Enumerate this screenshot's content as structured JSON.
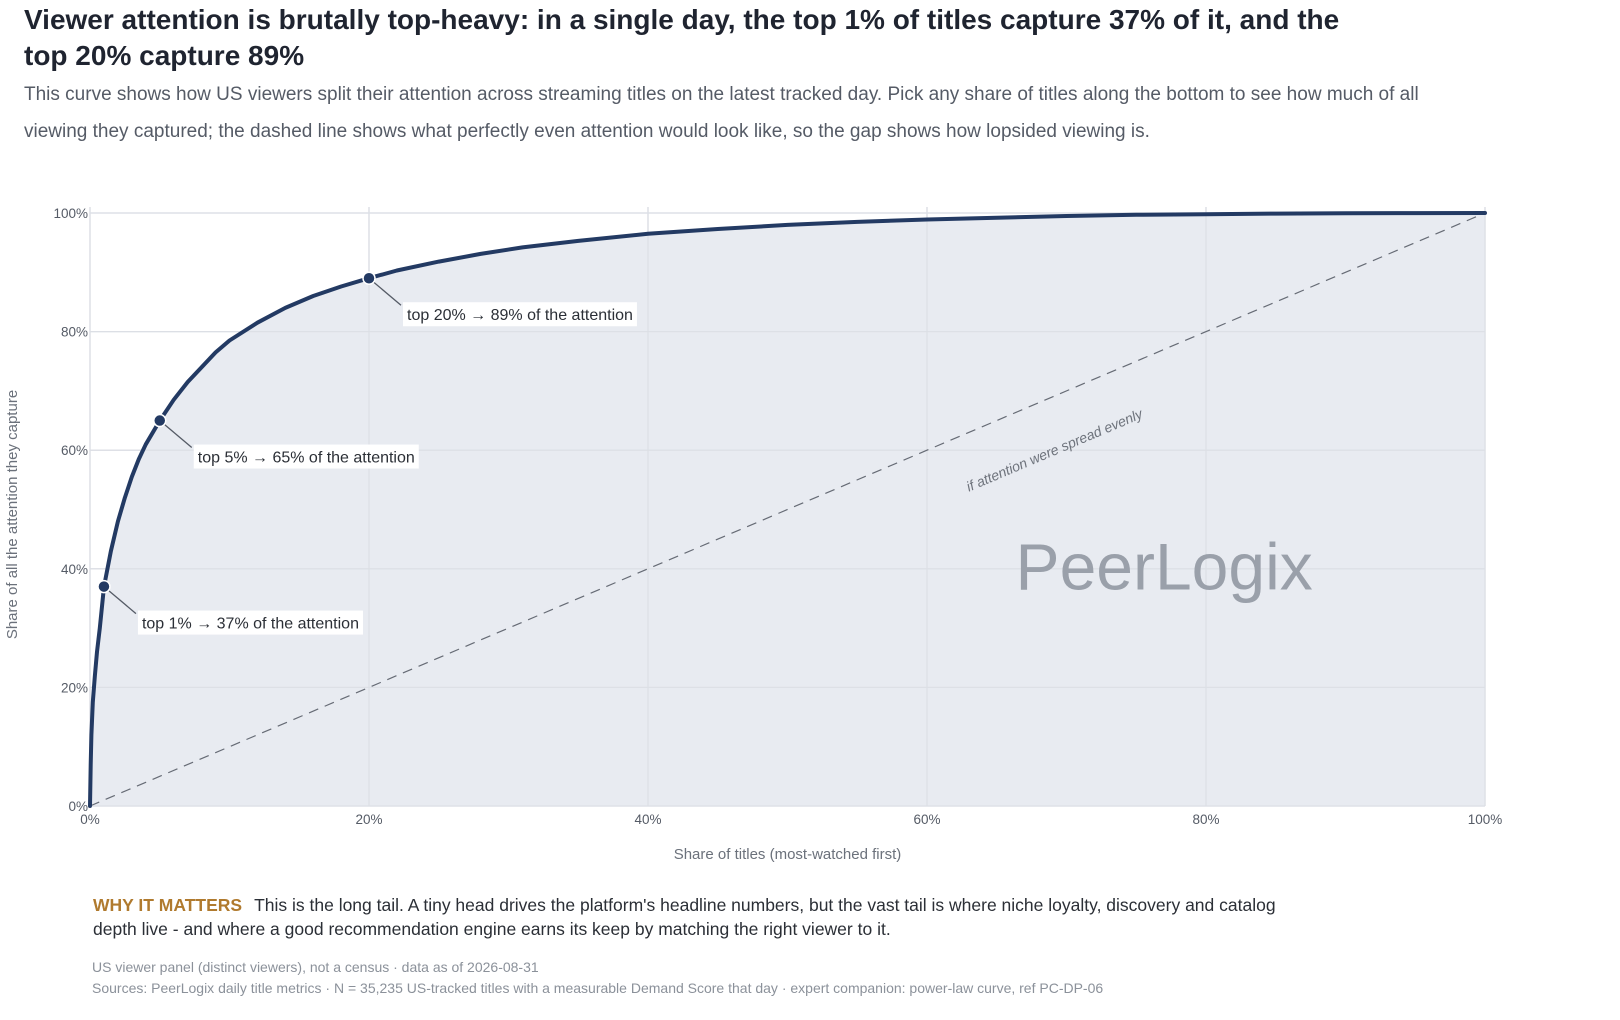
{
  "header": {
    "title": "Viewer attention is brutally top-heavy: in a single day, the top 1% of titles capture 37% of it, and the top 20% capture 89%",
    "subtitle": "This curve shows how US viewers split their attention across streaming titles on the latest tracked day. Pick any share of titles along the bottom to see how much of all viewing they captured; the dashed line shows what perfectly even attention would look like, so the gap shows how lopsided viewing is."
  },
  "chart_data": {
    "type": "area",
    "xlabel": "Share of titles (most-watched first)",
    "ylabel": "Share of all the attention they capture",
    "xlim": [
      0,
      100
    ],
    "ylim": [
      0,
      100
    ],
    "x_ticks": [
      "0%",
      "20%",
      "40%",
      "60%",
      "80%",
      "100%"
    ],
    "y_ticks": [
      "0%",
      "20%",
      "40%",
      "60%",
      "80%",
      "100%"
    ],
    "grid": true,
    "series": [
      {
        "x": [
          0,
          0.05,
          0.1,
          0.2,
          0.35,
          0.5,
          0.7,
          1,
          1.5,
          2,
          2.5,
          3,
          3.5,
          4,
          5,
          6,
          7,
          8,
          9,
          10,
          12,
          14,
          16,
          18,
          20,
          22,
          25,
          28,
          31,
          35,
          40,
          45,
          50,
          55,
          60,
          65,
          70,
          75,
          80,
          85,
          90,
          95,
          100
        ],
        "y": [
          0,
          7,
          12,
          17.5,
          22,
          26,
          30,
          37,
          43,
          48,
          52,
          55.5,
          58.5,
          61,
          65,
          68.5,
          71.5,
          74,
          76.5,
          78.5,
          81.5,
          84,
          86,
          87.6,
          89,
          90.3,
          91.8,
          93.1,
          94.2,
          95.3,
          96.5,
          97.3,
          98,
          98.5,
          98.9,
          99.2,
          99.5,
          99.7,
          99.8,
          99.9,
          99.95,
          99.98,
          100
        ],
        "color": "#233a63"
      }
    ],
    "equality_line": {
      "x": [
        0,
        100
      ],
      "y": [
        0,
        100
      ],
      "label": "if attention were spread evenly",
      "color": "#666b75"
    },
    "highlights": [
      {
        "x": 1,
        "y": 37,
        "label": "top 1% → 37% of the attention"
      },
      {
        "x": 5,
        "y": 65,
        "label": "top 5% → 65% of the attention"
      },
      {
        "x": 20,
        "y": 89,
        "label": "top 20% → 89% of the attention"
      }
    ],
    "watermark": "PeerLogix"
  },
  "why": {
    "label": "WHY IT MATTERS",
    "text": "This is the long tail. A tiny head drives the platform's headline numbers, but the vast tail is where niche loyalty, discovery and catalog depth live - and where a good recommendation engine earns its keep by matching the right viewer to it."
  },
  "footer": {
    "note": "US viewer panel (distinct viewers), not a census · data as of 2026-08-31",
    "source": "Sources: PeerLogix daily title metrics · N = 35,235 US-tracked titles with a measurable Demand Score that day · expert companion: power-law curve, ref PC-DP-06"
  },
  "colors": {
    "curve": "#233a63",
    "fill": "#e8ebf1",
    "grid": "#dcdfe5",
    "accent": "#b07a2e"
  }
}
